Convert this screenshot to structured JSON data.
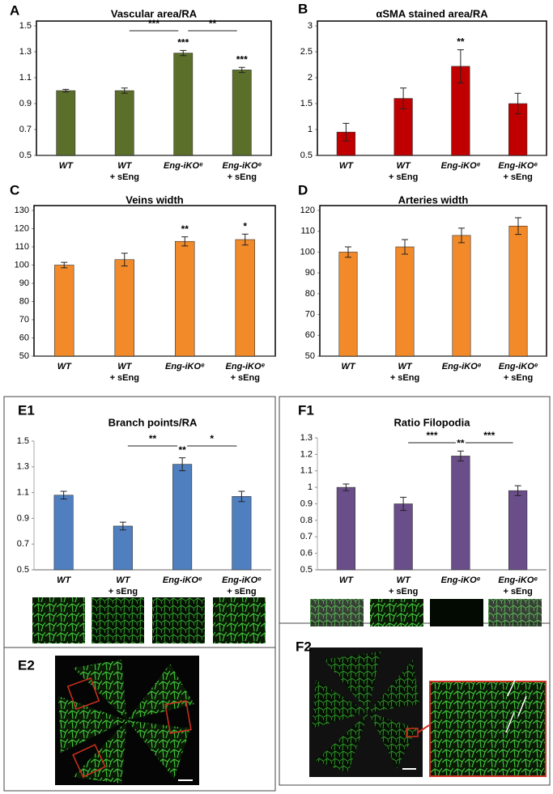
{
  "chart_data": [
    {
      "type": "bar",
      "panel": "A",
      "title": "Vascular area/RA",
      "frame": true,
      "color": "#5b6f2b",
      "categories": [
        [
          "WT"
        ],
        [
          "WT",
          "+ sEng"
        ],
        [
          "Eng-iKOᵉ"
        ],
        [
          "Eng-iKOᵉ",
          "+ sEng"
        ]
      ],
      "values": [
        1.0,
        1.0,
        1.29,
        1.16
      ],
      "errors": [
        0.01,
        0.02,
        0.02,
        0.02
      ],
      "significance": [
        null,
        null,
        "***",
        "***"
      ],
      "brackets": [
        {
          "categories": [
            1,
            2
          ],
          "label": "***"
        },
        {
          "categories": [
            2,
            3
          ],
          "label": "**"
        }
      ],
      "ylim": [
        0.5,
        1.5
      ],
      "yticks": [
        0.5,
        0.7,
        0.9,
        1.1,
        1.3,
        1.5
      ]
    },
    {
      "type": "bar",
      "panel": "B",
      "title": "αSMA stained area/RA",
      "frame": true,
      "color": "#c00000",
      "categories": [
        [
          "WT"
        ],
        [
          "WT",
          "+ sEng"
        ],
        [
          "Eng-iKOᵉ"
        ],
        [
          "Eng-iKOᵉ",
          "+ sEng"
        ]
      ],
      "values": [
        0.95,
        1.6,
        2.22,
        1.5
      ],
      "errors": [
        0.17,
        0.2,
        0.32,
        0.2
      ],
      "significance": [
        null,
        null,
        "**",
        null
      ],
      "brackets": [],
      "ylim": [
        0.5,
        3
      ],
      "yticks": [
        0.5,
        1,
        1.5,
        2,
        2.5,
        3
      ]
    },
    {
      "type": "bar",
      "panel": "C",
      "title": "Veins width",
      "frame": true,
      "color": "#f28a2a",
      "categories": [
        [
          "WT"
        ],
        [
          "WT",
          "+ sEng"
        ],
        [
          "Eng-iKOᵉ"
        ],
        [
          "Eng-iKOᵉ",
          "+ sEng"
        ]
      ],
      "values": [
        100,
        103,
        113,
        114
      ],
      "errors": [
        1.5,
        3.5,
        2.5,
        3
      ],
      "significance": [
        null,
        null,
        "**",
        "*"
      ],
      "brackets": [],
      "ylim": [
        50,
        130
      ],
      "yticks": [
        50,
        60,
        70,
        80,
        90,
        100,
        110,
        120,
        130
      ]
    },
    {
      "type": "bar",
      "panel": "D",
      "title": "Arteries width",
      "frame": true,
      "color": "#f28a2a",
      "categories": [
        [
          "WT"
        ],
        [
          "WT",
          "+ sEng"
        ],
        [
          "Eng-iKOᵉ"
        ],
        [
          "Eng-iKOᵉ",
          "+ sEng"
        ]
      ],
      "values": [
        100,
        102.5,
        108,
        112.5
      ],
      "errors": [
        2.5,
        3.5,
        3.5,
        4
      ],
      "significance": [
        null,
        null,
        null,
        null
      ],
      "brackets": [],
      "ylim": [
        50,
        120
      ],
      "yticks": [
        50,
        60,
        70,
        80,
        90,
        100,
        110,
        120
      ]
    },
    {
      "type": "bar",
      "panel": "E1",
      "title": "Branch points/RA",
      "frame": false,
      "color": "#4f7fbf",
      "categories": [
        [
          "WT"
        ],
        [
          "WT",
          "+ sEng"
        ],
        [
          "Eng-iKOᵉ"
        ],
        [
          "Eng-iKOᵉ",
          "+ sEng"
        ]
      ],
      "values": [
        1.08,
        0.84,
        1.32,
        1.07
      ],
      "errors": [
        0.03,
        0.03,
        0.05,
        0.04
      ],
      "significance": [
        null,
        null,
        "**",
        null
      ],
      "brackets": [
        {
          "categories": [
            1,
            2
          ],
          "label": "**"
        },
        {
          "categories": [
            2,
            3
          ],
          "label": "*"
        }
      ],
      "ylim": [
        0.5,
        1.5
      ],
      "yticks": [
        0.5,
        0.7,
        0.9,
        1.1,
        1.3,
        1.5
      ]
    },
    {
      "type": "bar",
      "panel": "F1",
      "title": "Ratio Filopodia",
      "frame": false,
      "color": "#6a4e8a",
      "categories": [
        [
          "WT"
        ],
        [
          "WT",
          "+ sEng"
        ],
        [
          "Eng-iKOᵉ"
        ],
        [
          "Eng-iKOᵉ",
          "+ sEng"
        ]
      ],
      "values": [
        1.0,
        0.9,
        1.19,
        0.98
      ],
      "errors": [
        0.02,
        0.04,
        0.03,
        0.03
      ],
      "significance": [
        null,
        null,
        "**",
        null
      ],
      "brackets": [
        {
          "categories": [
            1,
            2
          ],
          "label": "***"
        },
        {
          "categories": [
            2,
            3
          ],
          "label": "***"
        }
      ],
      "ylim": [
        0.5,
        1.3
      ],
      "yticks": [
        0.5,
        0.6,
        0.7,
        0.8,
        0.9,
        1,
        1.1,
        1.2,
        1.3
      ]
    }
  ],
  "image_panels": [
    {
      "panel": "E2"
    },
    {
      "panel": "F2"
    }
  ]
}
